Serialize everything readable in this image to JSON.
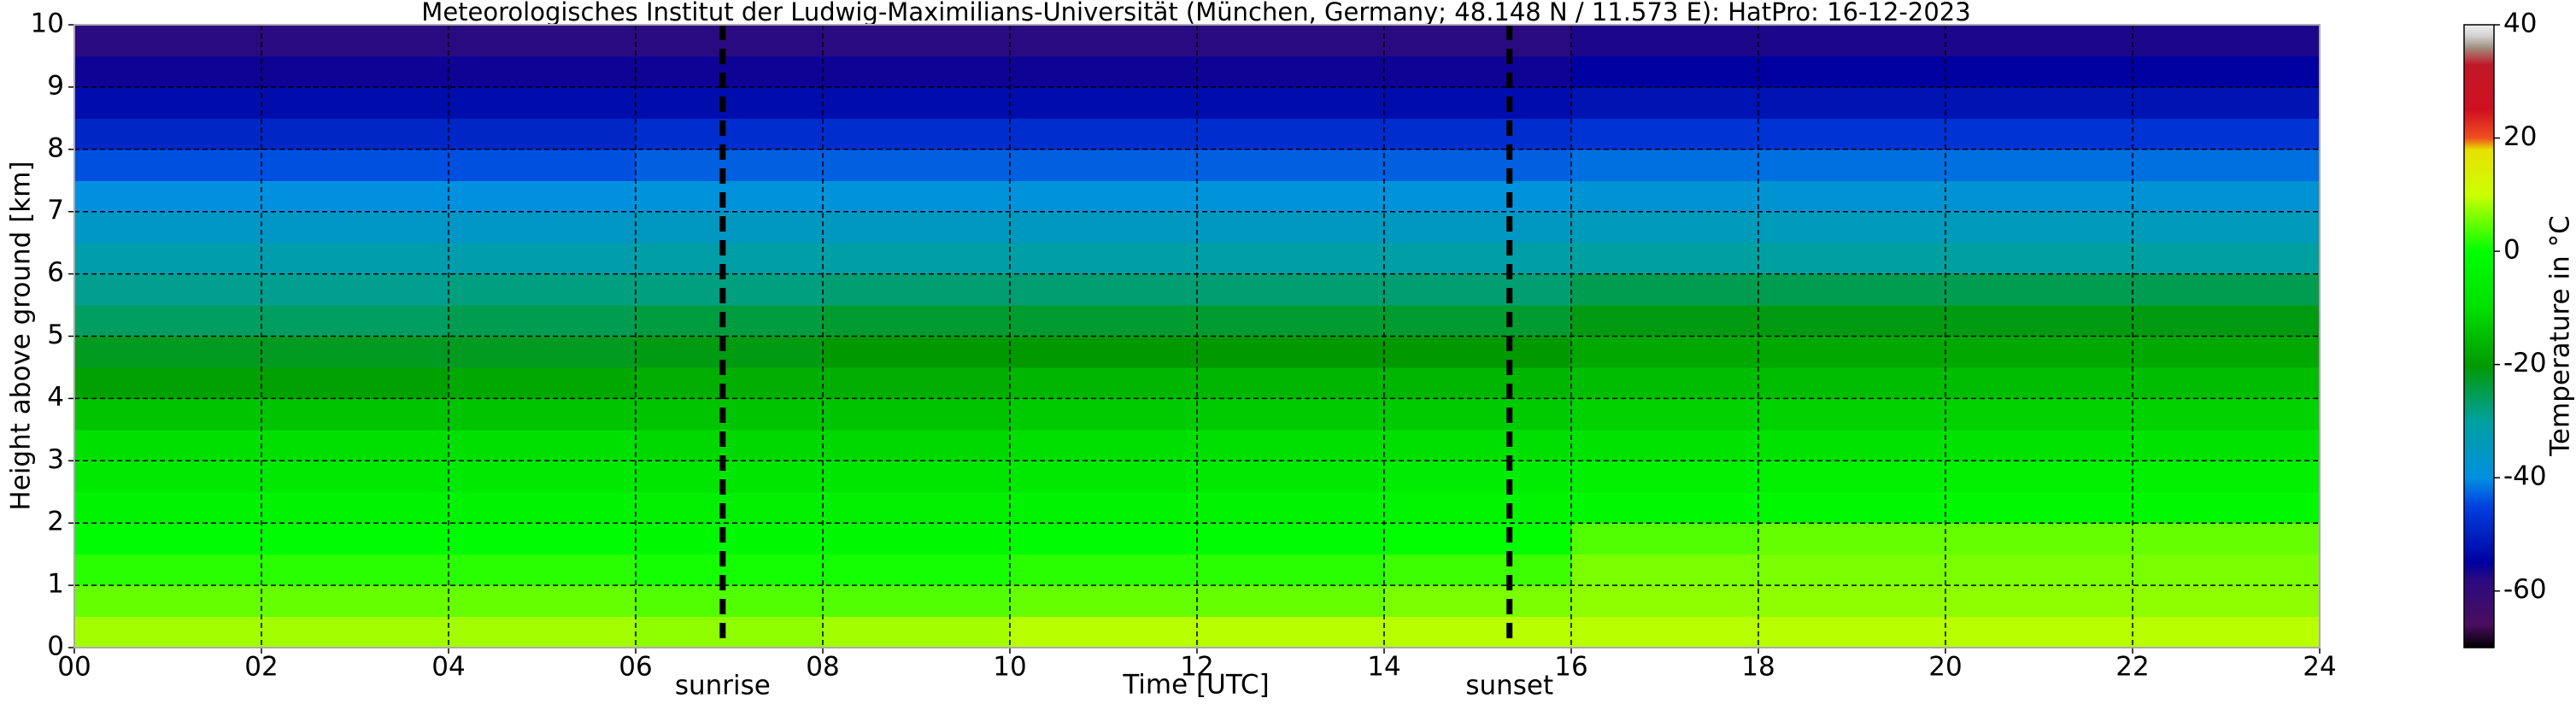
{
  "chart_data": {
    "type": "heatmap",
    "title": "Meteorologisches Institut der Ludwig-Maximilians-Universität (München, Germany; 48.148 N / 11.573 E):    HatPro: 16-12-2023",
    "xlabel": "Time [UTC]",
    "ylabel": "Height above ground [km]",
    "colorbar_label": "Temperature in °C",
    "xlim": [
      0,
      24
    ],
    "ylim": [
      0,
      10
    ],
    "clim": [
      -70,
      40
    ],
    "xticks": [
      {
        "value": 0,
        "label": "00"
      },
      {
        "value": 2,
        "label": "02"
      },
      {
        "value": 4,
        "label": "04"
      },
      {
        "value": 6,
        "label": "06"
      },
      {
        "value": 8,
        "label": "08"
      },
      10,
      12,
      14,
      16,
      18,
      20,
      22,
      24
    ],
    "yticks": [
      0,
      1,
      2,
      3,
      4,
      5,
      6,
      7,
      8,
      9,
      10
    ],
    "cticks": [
      -60,
      -40,
      -20,
      0,
      20,
      40
    ],
    "grid": true,
    "vlines": [
      {
        "x": 6.93,
        "label": "sunrise"
      },
      {
        "x": 15.34,
        "label": "sunset"
      }
    ],
    "colorscale": [
      {
        "value": -70,
        "color": "#000000"
      },
      {
        "value": -66,
        "color": "#4a0d5e"
      },
      {
        "value": -58,
        "color": "#2a0a80"
      },
      {
        "value": -55,
        "color": "#0000a0"
      },
      {
        "value": -45,
        "color": "#0040e0"
      },
      {
        "value": -40,
        "color": "#0090e0"
      },
      {
        "value": -30,
        "color": "#00a0a0"
      },
      {
        "value": -20,
        "color": "#009a00"
      },
      {
        "value": -10,
        "color": "#00e000"
      },
      {
        "value": 0,
        "color": "#00ff00"
      },
      {
        "value": 10,
        "color": "#ccff00"
      },
      {
        "value": 18,
        "color": "#e8e000"
      },
      {
        "value": 20,
        "color": "#f05020"
      },
      {
        "value": 25,
        "color": "#d01020"
      },
      {
        "value": 33,
        "color": "#c01828"
      },
      {
        "value": 36,
        "color": "#a09080"
      },
      {
        "value": 38,
        "color": "#d0d0d0"
      },
      {
        "value": 40,
        "color": "#f0f0f0"
      }
    ],
    "xbins": [
      0,
      2,
      4,
      6,
      8,
      10,
      12,
      14,
      16,
      18,
      20,
      22,
      24
    ],
    "ybins": [
      0,
      0.5,
      1,
      1.5,
      2,
      2.5,
      3,
      3.5,
      4,
      4.5,
      5,
      5.5,
      6,
      6.5,
      7,
      7.5,
      8,
      8.5,
      9,
      9.5,
      10
    ],
    "values": [
      [
        8,
        8,
        8,
        7,
        8,
        9,
        9,
        9,
        9,
        9,
        9,
        9
      ],
      [
        5,
        5,
        5,
        4,
        4,
        5,
        5,
        6,
        7,
        7,
        7,
        7
      ],
      [
        2,
        2,
        2,
        1,
        1,
        2,
        2,
        3,
        6,
        6,
        6,
        6
      ],
      [
        -1,
        -1,
        -1,
        -2,
        -2,
        -1,
        -1,
        0,
        4,
        5,
        5,
        5
      ],
      [
        -4,
        -4,
        -4,
        -5,
        -5,
        -4,
        -4,
        -3,
        -2,
        -2,
        -2,
        -2
      ],
      [
        -7,
        -7,
        -7,
        -8,
        -8,
        -7,
        -7,
        -6,
        -5,
        -5,
        -5,
        -5
      ],
      [
        -10,
        -10,
        -10,
        -11,
        -11,
        -10,
        -10,
        -10,
        -9,
        -9,
        -9,
        -9
      ],
      [
        -14,
        -14,
        -14,
        -14,
        -14,
        -13,
        -13,
        -13,
        -12,
        -12,
        -12,
        -12
      ],
      [
        -19,
        -19,
        -18,
        -17,
        -17,
        -16,
        -16,
        -16,
        -15,
        -15,
        -15,
        -15
      ],
      [
        -22,
        -22,
        -22,
        -21,
        -20,
        -20,
        -20,
        -20,
        -18,
        -18,
        -18,
        -18
      ],
      [
        -26,
        -26,
        -25,
        -24,
        -23,
        -23,
        -23,
        -23,
        -21,
        -21,
        -21,
        -21
      ],
      [
        -29,
        -29,
        -28,
        -28,
        -27,
        -27,
        -27,
        -27,
        -25,
        -25,
        -25,
        -25
      ],
      [
        -32,
        -32,
        -32,
        -31,
        -31,
        -31,
        -31,
        -31,
        -30,
        -30,
        -30,
        -30
      ],
      [
        -36,
        -36,
        -36,
        -35,
        -35,
        -35,
        -35,
        -35,
        -34,
        -34,
        -34,
        -34
      ],
      [
        -40,
        -40,
        -40,
        -39,
        -39,
        -39,
        -39,
        -39,
        -38,
        -38,
        -38,
        -38
      ],
      [
        -44,
        -44,
        -44,
        -43,
        -43,
        -43,
        -43,
        -43,
        -42,
        -42,
        -42,
        -42
      ],
      [
        -49,
        -49,
        -49,
        -48,
        -48,
        -48,
        -48,
        -48,
        -47,
        -47,
        -47,
        -47
      ],
      [
        -53,
        -53,
        -53,
        -53,
        -53,
        -53,
        -53,
        -53,
        -52,
        -52,
        -52,
        -52
      ],
      [
        -56,
        -56,
        -56,
        -56,
        -56,
        -56,
        -56,
        -56,
        -55,
        -55,
        -55,
        -55
      ],
      [
        -58,
        -58,
        -58,
        -58,
        -58,
        -58,
        -58,
        -58,
        -57,
        -57,
        -57,
        -57
      ]
    ]
  }
}
